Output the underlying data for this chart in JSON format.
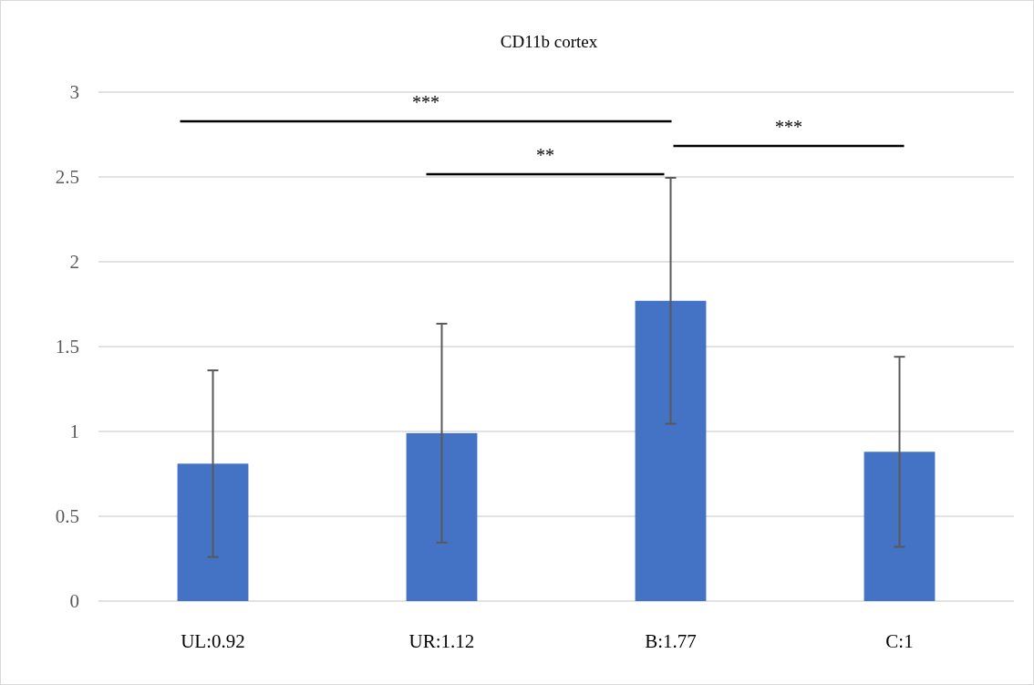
{
  "chart_data": {
    "type": "bar",
    "title": "CD11b cortex",
    "categories": [
      "UL:0.92",
      "UR:1.12",
      "B:1.77",
      "C:1"
    ],
    "values": [
      0.81,
      0.99,
      1.77,
      0.88
    ],
    "errors": [
      0.55,
      0.645,
      0.725,
      0.56
    ],
    "color": "#4472c4",
    "ylim": [
      0,
      3
    ],
    "yticks": [
      0,
      0.5,
      1,
      1.5,
      2,
      2.5,
      3
    ],
    "grid": "y",
    "annotations": [
      "***",
      "**",
      "***"
    ]
  }
}
